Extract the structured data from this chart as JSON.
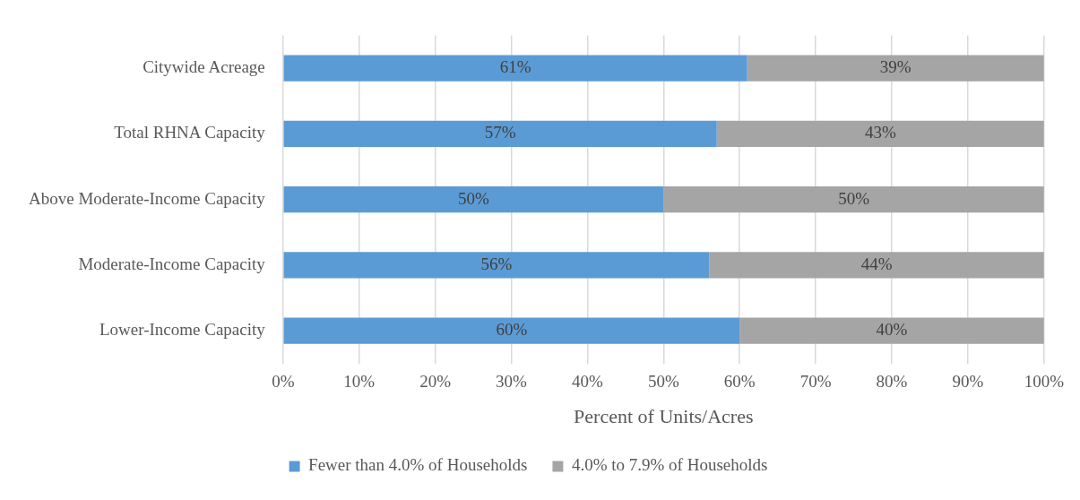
{
  "chart_data": {
    "type": "bar",
    "orientation": "horizontal",
    "stacked": true,
    "xlabel": "Percent of Units/Acres",
    "categories": [
      "Citywide Acreage",
      "Total RHNA Capacity",
      "Above Moderate-Income Capacity",
      "Moderate-Income Capacity",
      "Lower-Income Capacity"
    ],
    "series": [
      {
        "name": "Fewer than 4.0% of Households",
        "color": "#5b9bd5",
        "values": [
          61,
          57,
          50,
          56,
          60
        ],
        "value_labels": [
          "61%",
          "57%",
          "50%",
          "56%",
          "60%"
        ]
      },
      {
        "name": "4.0% to 7.9% of Households",
        "color": "#a5a5a5",
        "values": [
          39,
          43,
          50,
          44,
          40
        ],
        "value_labels": [
          "39%",
          "43%",
          "50%",
          "44%",
          "40%"
        ]
      }
    ],
    "xlim": [
      0,
      100
    ],
    "xticks": [
      {
        "value": 0,
        "label": "0%"
      },
      {
        "value": 10,
        "label": "10%"
      },
      {
        "value": 20,
        "label": "20%"
      },
      {
        "value": 30,
        "label": "30%"
      },
      {
        "value": 40,
        "label": "40%"
      },
      {
        "value": 50,
        "label": "50%"
      },
      {
        "value": 60,
        "label": "60%"
      },
      {
        "value": 70,
        "label": "70%"
      },
      {
        "value": 80,
        "label": "80%"
      },
      {
        "value": 90,
        "label": "90%"
      },
      {
        "value": 100,
        "label": "100%"
      }
    ],
    "grid": "x",
    "legend": "bottom"
  }
}
